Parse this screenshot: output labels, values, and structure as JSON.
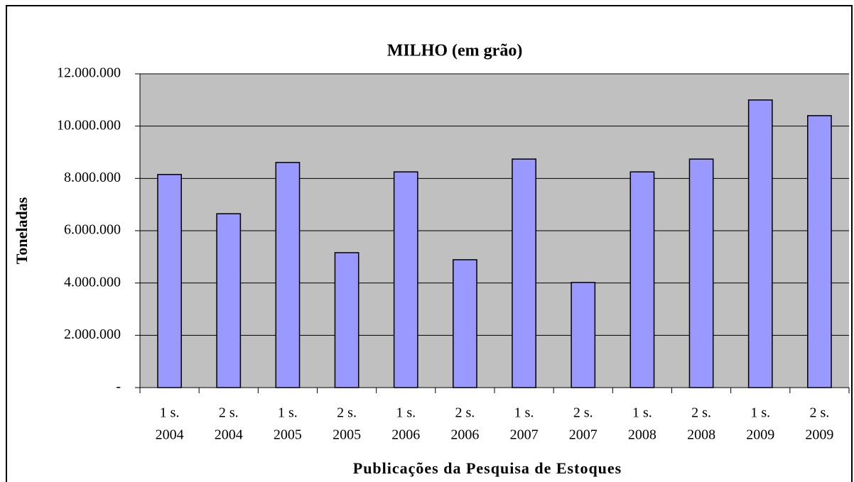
{
  "chart_data": {
    "type": "bar",
    "title": "MILHO (em grão)",
    "y_label": "Toneladas",
    "x_label": "Publicações da Pesquisa de Estoques",
    "categories": [
      [
        "1 s.",
        "2004"
      ],
      [
        "2 s.",
        "2004"
      ],
      [
        "1 s.",
        "2005"
      ],
      [
        "2 s.",
        "2005"
      ],
      [
        "1 s.",
        "2006"
      ],
      [
        "2 s.",
        "2006"
      ],
      [
        "1 s.",
        "2007"
      ],
      [
        "2 s.",
        "2007"
      ],
      [
        "1 s.",
        "2008"
      ],
      [
        "2 s.",
        "2008"
      ],
      [
        "1 s.",
        "2009"
      ],
      [
        "2 s.",
        "2009"
      ]
    ],
    "values": [
      8150000,
      6650000,
      8610000,
      5160000,
      8250000,
      4890000,
      8740000,
      4020000,
      8250000,
      8740000,
      11000000,
      10400000
    ],
    "color": "#9999ff",
    "ylim": [
      0,
      12000000
    ],
    "yticks": [
      {
        "value": 0,
        "label": "-"
      },
      {
        "value": 2000000,
        "label": "2.000.000"
      },
      {
        "value": 4000000,
        "label": "4.000.000"
      },
      {
        "value": 6000000,
        "label": "6.000.000"
      },
      {
        "value": 8000000,
        "label": "8.000.000"
      },
      {
        "value": 10000000,
        "label": "10.000.000"
      },
      {
        "value": 12000000,
        "label": "12.000.000"
      }
    ],
    "grid": true
  }
}
